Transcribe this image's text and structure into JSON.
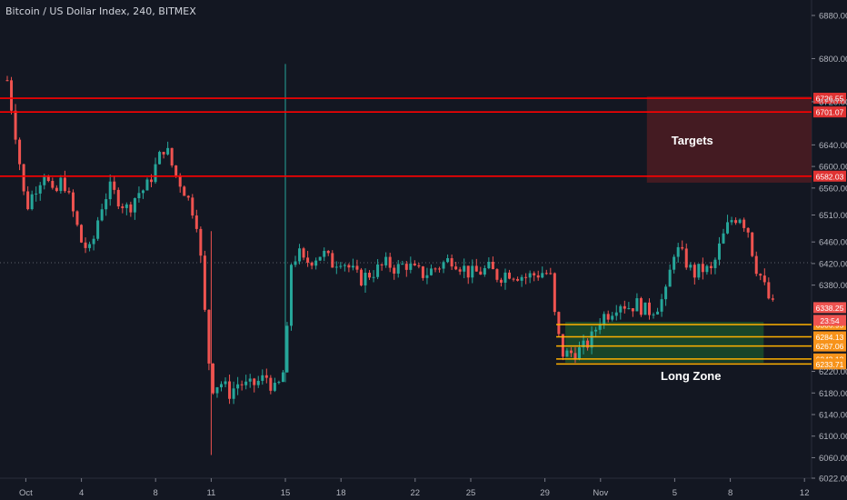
{
  "header": {
    "title": "Bitcoin / US Dollar Index, 240, BITMEX"
  },
  "colors": {
    "background": "#131722",
    "up": "#26a69a",
    "down": "#ef5350",
    "target_line": "#ff0000",
    "zone_line": "#ffb000",
    "zone_fill": "#1b4d2a",
    "target_fill": "#4a1c22"
  },
  "chart_data": {
    "type": "candlestick",
    "symbol": "Bitcoin / US Dollar Index",
    "interval": "240",
    "exchange": "BITMEX",
    "ylim": [
      6022,
      6900
    ],
    "y_ticks": [
      "6880.00",
      "6800.00",
      "6720.00",
      "6640.00",
      "6600.00",
      "6560.00",
      "6510.00",
      "6460.00",
      "6420.00",
      "6380.00",
      "6220.00",
      "6180.00",
      "6140.00",
      "6100.00",
      "6060.00",
      "6022.00"
    ],
    "x_ticks": [
      {
        "label": "Oct",
        "day": 1
      },
      {
        "label": "4",
        "day": 4
      },
      {
        "label": "8",
        "day": 8
      },
      {
        "label": "11",
        "day": 11
      },
      {
        "label": "15",
        "day": 15
      },
      {
        "label": "18",
        "day": 18
      },
      {
        "label": "22",
        "day": 22
      },
      {
        "label": "25",
        "day": 25
      },
      {
        "label": "29",
        "day": 29
      },
      {
        "label": "Nov",
        "day": 32
      },
      {
        "label": "5",
        "day": 36
      },
      {
        "label": "8",
        "day": 39
      },
      {
        "label": "12",
        "day": 43
      }
    ],
    "horizontal_levels": [
      {
        "label": "6726.55",
        "value": 6726.55,
        "kind": "target"
      },
      {
        "label": "6701.07",
        "value": 6701.07,
        "kind": "target"
      },
      {
        "label": "6582.03",
        "value": 6582.03,
        "kind": "target"
      },
      {
        "label": "6306.95",
        "value": 6306.95,
        "kind": "zone"
      },
      {
        "label": "6284.13",
        "value": 6284.13,
        "kind": "zone"
      },
      {
        "label": "6267.06",
        "value": 6267.06,
        "kind": "zone"
      },
      {
        "label": "6243.13",
        "value": 6243.13,
        "kind": "zone"
      },
      {
        "label": "6233.71",
        "value": 6233.71,
        "kind": "zone"
      }
    ],
    "current_price": "6338.25",
    "countdown": "23:54",
    "annotations": {
      "targets": "Targets",
      "long_zone": "Long Zone"
    },
    "targets_box": {
      "day_from": 34.5,
      "day_to": 43.3,
      "high": 6730,
      "low": 6570
    },
    "long_zone_box": {
      "day_from": 30.1,
      "day_to": 40.8,
      "high": 6312,
      "low": 6236
    },
    "close_path": [
      [
        0.0,
        6760
      ],
      [
        0.5,
        6650
      ],
      [
        1.0,
        6520
      ],
      [
        1.5,
        6560
      ],
      [
        2.0,
        6590
      ],
      [
        2.5,
        6540
      ],
      [
        3.0,
        6580
      ],
      [
        3.5,
        6520
      ],
      [
        4.0,
        6460
      ],
      [
        4.5,
        6440
      ],
      [
        5.0,
        6520
      ],
      [
        5.5,
        6560
      ],
      [
        6.0,
        6540
      ],
      [
        6.5,
        6520
      ],
      [
        7.0,
        6550
      ],
      [
        7.5,
        6560
      ],
      [
        8.0,
        6600
      ],
      [
        8.5,
        6640
      ],
      [
        9.0,
        6590
      ],
      [
        9.5,
        6560
      ],
      [
        10.0,
        6520
      ],
      [
        10.3,
        6490
      ],
      [
        10.6,
        6350
      ],
      [
        11.0,
        6190
      ],
      [
        11.5,
        6200
      ],
      [
        12.0,
        6180
      ],
      [
        12.5,
        6200
      ],
      [
        13.0,
        6190
      ],
      [
        13.5,
        6200
      ],
      [
        14.0,
        6210
      ],
      [
        14.5,
        6180
      ],
      [
        15.0,
        6230
      ],
      [
        15.3,
        6420
      ],
      [
        15.7,
        6440
      ],
      [
        16.0,
        6420
      ],
      [
        16.5,
        6430
      ],
      [
        17.0,
        6440
      ],
      [
        17.5,
        6420
      ],
      [
        18.0,
        6430
      ],
      [
        18.5,
        6410
      ],
      [
        19.0,
        6390
      ],
      [
        19.5,
        6400
      ],
      [
        20.0,
        6410
      ],
      [
        20.5,
        6420
      ],
      [
        21.0,
        6410
      ],
      [
        21.5,
        6420
      ],
      [
        22.0,
        6405
      ],
      [
        22.5,
        6400
      ],
      [
        23.0,
        6410
      ],
      [
        23.5,
        6420
      ],
      [
        24.0,
        6430
      ],
      [
        24.5,
        6415
      ],
      [
        25.0,
        6400
      ],
      [
        25.5,
        6405
      ],
      [
        26.0,
        6410
      ],
      [
        26.5,
        6395
      ],
      [
        27.0,
        6405
      ],
      [
        27.5,
        6400
      ],
      [
        28.0,
        6395
      ],
      [
        28.5,
        6400
      ],
      [
        29.0,
        6405
      ],
      [
        29.3,
        6395
      ],
      [
        29.6,
        6300
      ],
      [
        30.0,
        6250
      ],
      [
        30.5,
        6255
      ],
      [
        31.0,
        6260
      ],
      [
        31.5,
        6280
      ],
      [
        32.0,
        6320
      ],
      [
        32.5,
        6330
      ],
      [
        33.0,
        6350
      ],
      [
        33.5,
        6340
      ],
      [
        34.0,
        6345
      ],
      [
        34.5,
        6330
      ],
      [
        35.0,
        6340
      ],
      [
        35.5,
        6360
      ],
      [
        36.0,
        6450
      ],
      [
        36.5,
        6430
      ],
      [
        37.0,
        6400
      ],
      [
        37.5,
        6410
      ],
      [
        38.0,
        6405
      ],
      [
        38.5,
        6460
      ],
      [
        39.0,
        6500
      ],
      [
        39.5,
        6510
      ],
      [
        40.0,
        6480
      ],
      [
        40.3,
        6420
      ],
      [
        40.6,
        6400
      ],
      [
        41.0,
        6360
      ],
      [
        41.3,
        6340
      ]
    ]
  }
}
